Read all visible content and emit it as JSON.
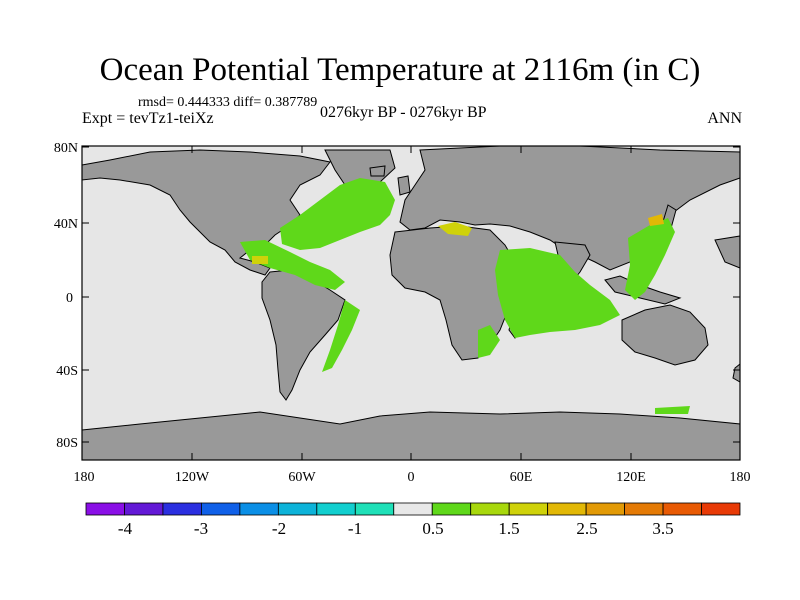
{
  "title": "Ocean Potential Temperature at 2116m (in C)",
  "stats_line": "rmsd= 0.444333 diff= 0.387789",
  "experiment": "Expt = tevTz1-teiXz",
  "period": "0276kyr BP - 0276kyr BP",
  "season": "ANN",
  "lat_labels": [
    "80N",
    "40N",
    "0",
    "40S",
    "80S"
  ],
  "lon_labels": [
    "180",
    "120W",
    "60W",
    "0",
    "60E",
    "120E",
    "180"
  ],
  "colorbar": {
    "colors": [
      "#8a0fe6",
      "#6319d6",
      "#2b2fe0",
      "#1060e8",
      "#0b8fe6",
      "#0db3d9",
      "#12cfcf",
      "#1fe0b8",
      "#e8e8e8",
      "#5fd81a",
      "#a8d80d",
      "#cfd20a",
      "#e2b806",
      "#e29a06",
      "#e47a05",
      "#e85a04",
      "#e83a06"
    ],
    "labels": [
      "-4",
      "-3",
      "-2",
      "-1",
      "0.5",
      "1.5",
      "2.5",
      "3.5"
    ]
  },
  "colors": {
    "ocean": "#e6e6e6",
    "land": "#999999",
    "warm_green": "#5fd81a",
    "warm_yellow": "#cfd20a",
    "warm_orange": "#e2b806"
  }
}
